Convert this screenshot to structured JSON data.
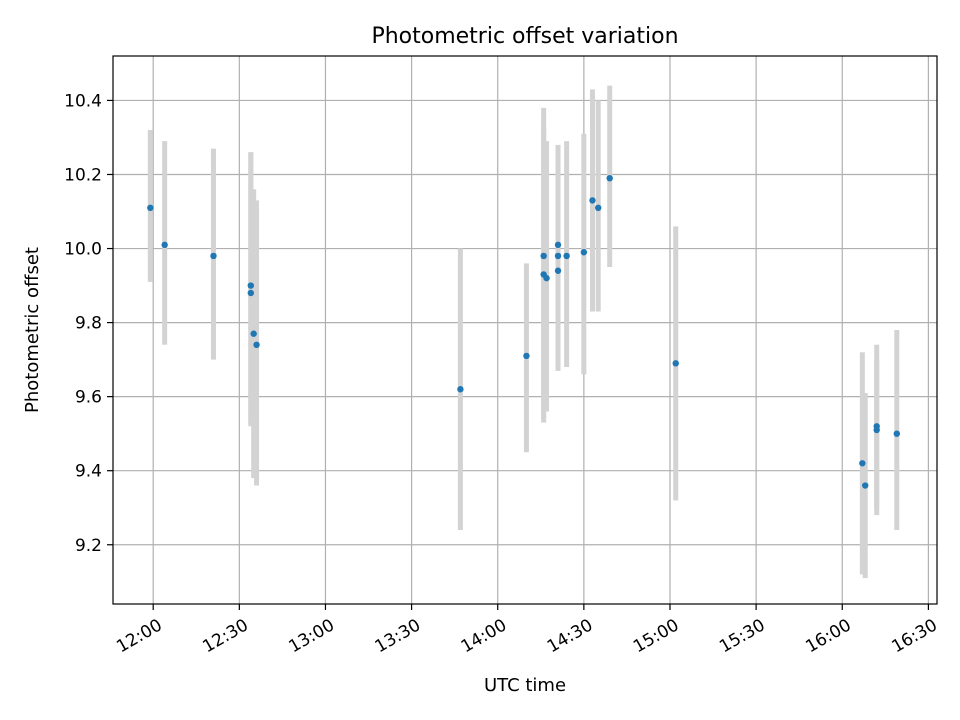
{
  "chart_data": {
    "type": "scatter",
    "title": "Photometric offset variation",
    "xlabel": "UTC time",
    "ylabel": "Photometric offset",
    "x_axis": "time",
    "xlim": [
      "11:46",
      "16:33"
    ],
    "ylim": [
      9.04,
      10.52
    ],
    "x_ticks": [
      "12:00",
      "12:30",
      "13:00",
      "13:30",
      "14:00",
      "14:30",
      "15:00",
      "15:30",
      "16:00",
      "16:30"
    ],
    "y_ticks": [
      9.2,
      9.4,
      9.6,
      9.8,
      10.0,
      10.2,
      10.4
    ],
    "grid": true,
    "legend": false,
    "colors": {
      "points": "#1f77b4",
      "error_bars": "#d3d3d3",
      "grid": "#b0b0b0"
    },
    "series": [
      {
        "points": [
          {
            "x": "11:59",
            "y": 10.11,
            "ylow": 9.91,
            "yhigh": 10.32
          },
          {
            "x": "12:04",
            "y": 10.01,
            "ylow": 9.74,
            "yhigh": 10.29
          },
          {
            "x": "12:21",
            "y": 9.98,
            "ylow": 9.7,
            "yhigh": 10.27
          },
          {
            "x": "12:34",
            "y": 9.88,
            "ylow": 9.52,
            "yhigh": 10.26
          },
          {
            "x": "12:34",
            "y": 9.9,
            "ylow": 9.53,
            "yhigh": 10.26
          },
          {
            "x": "12:35",
            "y": 9.77,
            "ylow": 9.38,
            "yhigh": 10.16
          },
          {
            "x": "12:36",
            "y": 9.74,
            "ylow": 9.36,
            "yhigh": 10.13
          },
          {
            "x": "13:47",
            "y": 9.62,
            "ylow": 9.24,
            "yhigh": 10.0
          },
          {
            "x": "14:10",
            "y": 9.71,
            "ylow": 9.45,
            "yhigh": 9.96
          },
          {
            "x": "14:16",
            "y": 9.98,
            "ylow": 9.54,
            "yhigh": 10.38
          },
          {
            "x": "14:16",
            "y": 9.93,
            "ylow": 9.53,
            "yhigh": 10.33
          },
          {
            "x": "14:17",
            "y": 9.92,
            "ylow": 9.56,
            "yhigh": 10.29
          },
          {
            "x": "14:21",
            "y": 10.01,
            "ylow": 9.67,
            "yhigh": 10.28
          },
          {
            "x": "14:21",
            "y": 9.98,
            "ylow": 9.7,
            "yhigh": 10.22
          },
          {
            "x": "14:21",
            "y": 9.94,
            "ylow": 9.67,
            "yhigh": 10.2
          },
          {
            "x": "14:24",
            "y": 9.98,
            "ylow": 9.68,
            "yhigh": 10.29
          },
          {
            "x": "14:30",
            "y": 9.99,
            "ylow": 9.66,
            "yhigh": 10.31
          },
          {
            "x": "14:33",
            "y": 10.13,
            "ylow": 9.83,
            "yhigh": 10.43
          },
          {
            "x": "14:35",
            "y": 10.11,
            "ylow": 9.83,
            "yhigh": 10.4
          },
          {
            "x": "14:39",
            "y": 10.19,
            "ylow": 9.95,
            "yhigh": 10.44
          },
          {
            "x": "15:02",
            "y": 9.69,
            "ylow": 9.32,
            "yhigh": 10.06
          },
          {
            "x": "16:07",
            "y": 9.42,
            "ylow": 9.12,
            "yhigh": 9.72
          },
          {
            "x": "16:08",
            "y": 9.36,
            "ylow": 9.11,
            "yhigh": 9.61
          },
          {
            "x": "16:12",
            "y": 9.51,
            "ylow": 9.28,
            "yhigh": 9.74
          },
          {
            "x": "16:12",
            "y": 9.52,
            "ylow": 9.3,
            "yhigh": 9.7
          },
          {
            "x": "16:19",
            "y": 9.5,
            "ylow": 9.24,
            "yhigh": 9.78
          }
        ]
      }
    ]
  }
}
